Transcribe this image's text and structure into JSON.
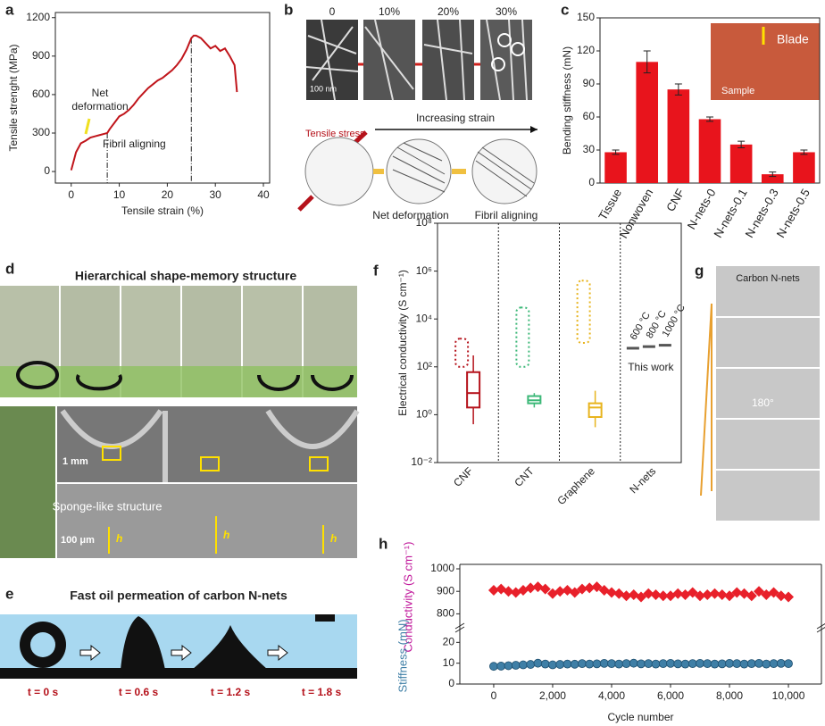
{
  "panel_labels": [
    "a",
    "b",
    "c",
    "d",
    "e",
    "f",
    "g",
    "h"
  ],
  "chart_data": [
    {
      "type": "line",
      "xlabel": "Tensile strain (%)",
      "ylabel": "Tensile strenght (MPa)",
      "color": "#c0151b",
      "x": [
        0,
        0.5,
        1,
        2,
        3,
        4,
        5,
        6,
        7,
        7.5,
        8,
        9,
        10,
        11,
        12,
        13,
        14,
        15,
        16,
        17,
        18,
        19,
        20,
        21,
        22,
        23,
        24,
        25,
        25.5,
        26,
        27,
        28,
        29,
        30,
        31,
        32,
        33,
        34,
        34.5
      ],
      "values": [
        10,
        80,
        150,
        220,
        240,
        265,
        275,
        285,
        295,
        300,
        330,
        380,
        430,
        450,
        480,
        520,
        570,
        610,
        650,
        680,
        710,
        730,
        760,
        790,
        830,
        880,
        950,
        1040,
        1060,
        1060,
        1040,
        1000,
        960,
        980,
        940,
        960,
        900,
        830,
        620
      ],
      "xlim": [
        -3.3,
        41.3
      ],
      "xticks": [
        0,
        10,
        20,
        30,
        40
      ],
      "ylim": [
        -90,
        1240
      ],
      "yticks": [
        0,
        300,
        600,
        900,
        1200
      ],
      "vlines": [
        7.5,
        25
      ],
      "annotations": [
        "Net deformation",
        "Fibril aligning"
      ]
    },
    {
      "type": "bar",
      "ylabel": "Bending stiffness (mN)",
      "color": "#e8141c",
      "categories": [
        "Tissue",
        "Nonwoven",
        "CNF",
        "N-nets-0",
        "N-nets-0.1",
        "N-nets-0.3",
        "N-nets-0.5"
      ],
      "values": [
        28,
        110,
        85,
        58,
        35,
        8,
        28
      ],
      "errors": [
        2,
        10,
        5,
        2,
        3,
        2,
        2
      ],
      "ylim": [
        0,
        150
      ],
      "yticks": [
        0,
        30,
        60,
        90,
        120,
        150
      ],
      "annotations": [
        "Blade",
        "Sample"
      ]
    },
    {
      "type": "box",
      "ylabel": "Electrical conductivity (S cm⁻¹)",
      "log": true,
      "categories": [
        "CNF",
        "CNT",
        "Graphene",
        "N-nets"
      ],
      "colors": [
        "#b5121b",
        "#3cb878",
        "#e8b41e",
        "#555555"
      ],
      "ylim": [
        0.01,
        100000000
      ],
      "yticks": [
        {
          "value": 0.01,
          "label": "10⁻²"
        },
        {
          "value": 1,
          "label": "10⁰"
        },
        {
          "value": 100,
          "label": "10²"
        },
        {
          "value": 10000,
          "label": "10⁴"
        },
        {
          "value": 1000000,
          "label": "10⁶"
        },
        {
          "value": 100000000,
          "label": "10⁸"
        }
      ],
      "dotted": [
        {
          "low": 100,
          "high": 1500
        },
        {
          "low": 100,
          "high": 30000
        },
        {
          "low": 1000,
          "high": 400000
        },
        null
      ],
      "boxes": [
        {
          "min": 0.4,
          "q1": 2,
          "median": 8,
          "q3": 60,
          "max": 300
        },
        {
          "min": 2,
          "q1": 3,
          "median": 4,
          "q3": 6,
          "max": 8
        },
        {
          "min": 0.3,
          "q1": 0.8,
          "median": 2,
          "q3": 3,
          "max": 10
        },
        null
      ],
      "nnets": [
        600,
        700,
        800
      ],
      "nnets_labels": [
        "600 °C",
        "800 °C",
        "1000 °C"
      ],
      "annotation": "This work"
    },
    {
      "type": "scatter",
      "xlabel": "Cycle number",
      "x": [
        0,
        250,
        500,
        750,
        1000,
        1250,
        1500,
        1750,
        2000,
        2250,
        2500,
        2750,
        3000,
        3250,
        3500,
        3750,
        4000,
        4250,
        4500,
        4750,
        5000,
        5250,
        5500,
        5750,
        6000,
        6250,
        6500,
        6750,
        7000,
        7250,
        7500,
        7750,
        8000,
        8250,
        8500,
        8750,
        9000,
        9250,
        9500,
        9750,
        10000
      ],
      "xlim": [
        -1150,
        11120
      ],
      "xticks": [
        0,
        {
          "value": 2000,
          "label": "2,000"
        },
        {
          "value": 4000,
          "label": "4,000"
        },
        {
          "value": 6000,
          "label": "6,000"
        },
        {
          "value": 8000,
          "label": "8,000"
        },
        {
          "value": 10000,
          "label": "10,000"
        }
      ],
      "subplots": [
        {
          "ylabel": "Conductivity (S cm⁻¹)",
          "label_color": "#c0169a",
          "color": "#e8202a",
          "ylim": [
            750,
            1000
          ],
          "yticks": [
            800,
            900,
            1000
          ],
          "values": [
            905,
            910,
            900,
            895,
            905,
            915,
            920,
            910,
            890,
            900,
            905,
            895,
            910,
            915,
            920,
            905,
            895,
            890,
            880,
            885,
            875,
            890,
            885,
            880,
            880,
            890,
            885,
            895,
            880,
            885,
            890,
            885,
            880,
            895,
            890,
            880,
            900,
            885,
            895,
            880,
            875
          ]
        },
        {
          "ylabel": "Stiffness (mN)",
          "label_color": "#3f7fa6",
          "color": "#3f7fa6",
          "ylim": [
            0,
            27
          ],
          "yticks": [
            0,
            10,
            20
          ],
          "values": [
            8.5,
            8.6,
            8.8,
            9.0,
            9.2,
            9.4,
            10.0,
            9.6,
            9.2,
            9.4,
            9.6,
            9.5,
            9.8,
            9.6,
            9.7,
            9.9,
            9.8,
            9.6,
            9.8,
            10.0,
            9.7,
            9.8,
            9.6,
            9.8,
            9.9,
            9.7,
            9.6,
            9.8,
            9.9,
            9.8,
            9.6,
            9.7,
            9.9,
            9.8,
            9.6,
            9.8,
            9.9,
            9.6,
            9.8,
            9.9,
            9.8
          ]
        }
      ]
    }
  ],
  "panel_b": {
    "strains": [
      "0",
      "10%",
      "20%",
      "30%"
    ],
    "scale": "100 nm",
    "tensile": "Tensile stress",
    "increasing": "Increasing strain",
    "net": "Net deformation",
    "fibril": "Fibril aligning"
  },
  "panel_d": {
    "title": "Hierarchical shape-memory structure",
    "scale1": "1 mm",
    "sponge": "Sponge-like structure",
    "scale2": "100 μm",
    "h": "h"
  },
  "panel_e": {
    "title": "Fast oil permeation of carbon N-nets",
    "times": [
      "t = 0 s",
      "t = 0.6 s",
      "t = 1.2 s",
      "t = 1.8 s"
    ]
  },
  "panel_g": {
    "label": "Carbon N-nets",
    "angle": "180°"
  }
}
